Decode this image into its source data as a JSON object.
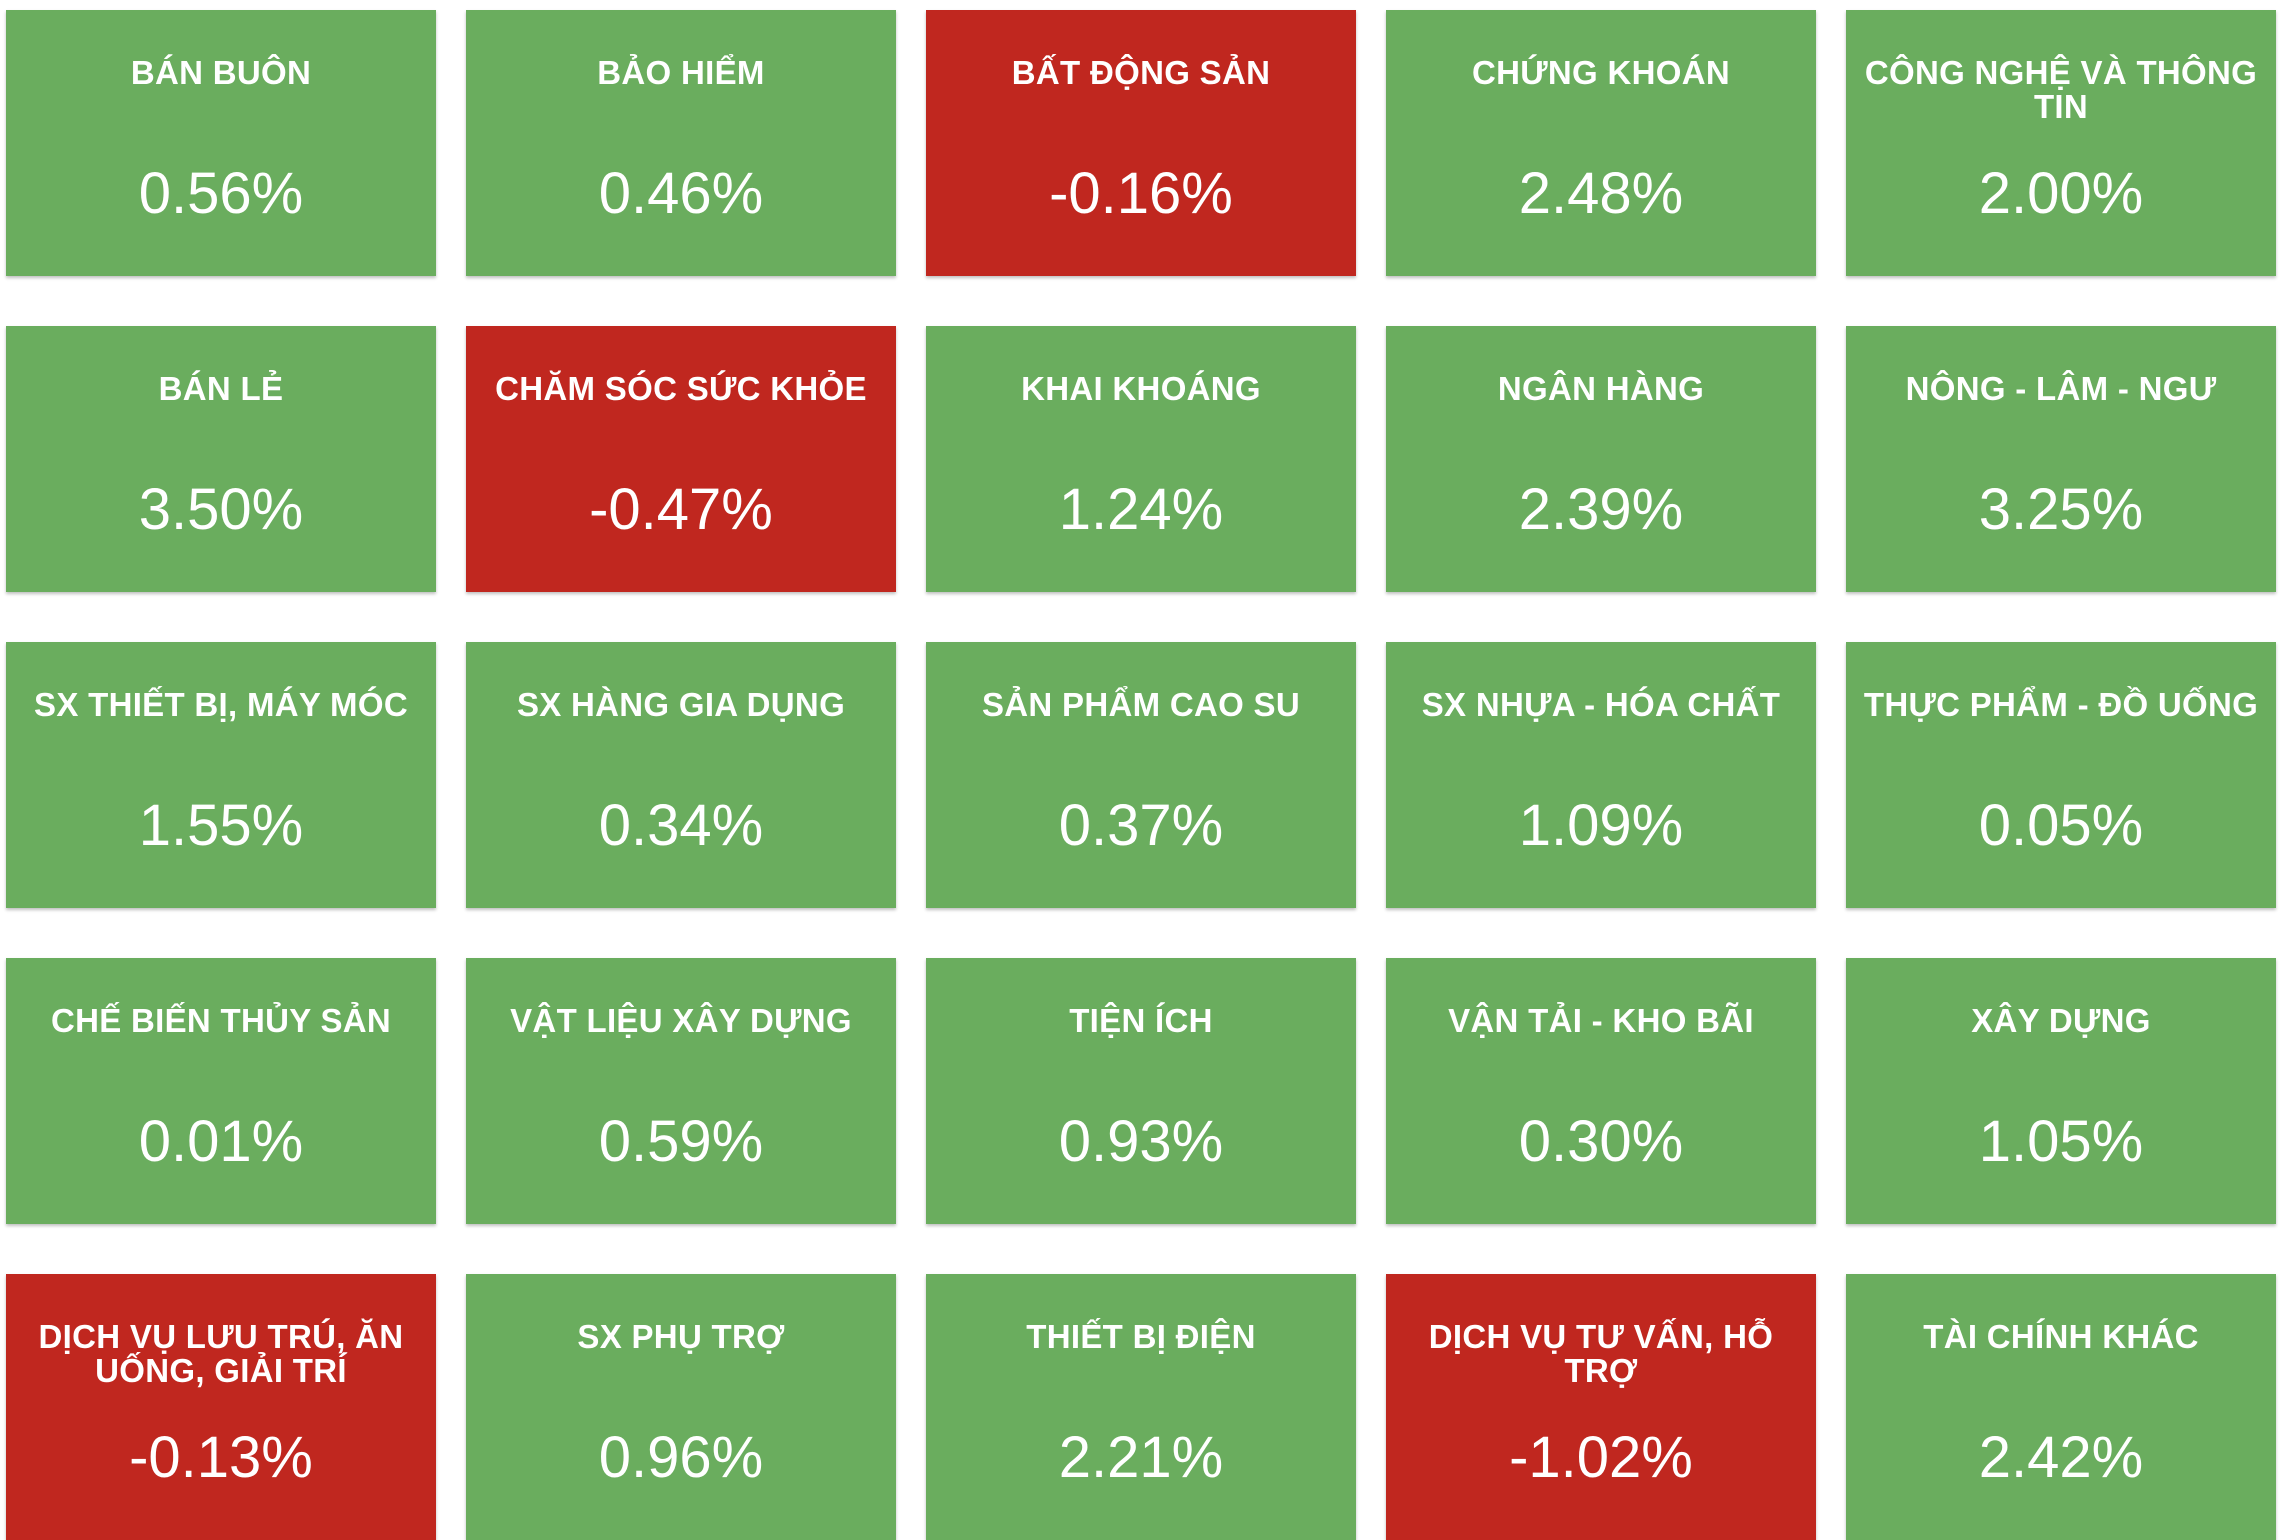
{
  "colors": {
    "up": "#6aad5e",
    "down": "#c0271f",
    "text": "#ffffff"
  },
  "sectors": [
    {
      "name": "BÁN BUÔN",
      "change": "0.56%",
      "trend": "up"
    },
    {
      "name": "BẢO HIỂM",
      "change": "0.46%",
      "trend": "up"
    },
    {
      "name": "BẤT ĐỘNG SẢN",
      "change": "-0.16%",
      "trend": "down"
    },
    {
      "name": "CHỨNG KHOÁN",
      "change": "2.48%",
      "trend": "up"
    },
    {
      "name": "CÔNG NGHỆ VÀ THÔNG TIN",
      "change": "2.00%",
      "trend": "up"
    },
    {
      "name": "BÁN LẺ",
      "change": "3.50%",
      "trend": "up"
    },
    {
      "name": "CHĂM SÓC SỨC KHỎE",
      "change": "-0.47%",
      "trend": "down"
    },
    {
      "name": "KHAI KHOÁNG",
      "change": "1.24%",
      "trend": "up"
    },
    {
      "name": "NGÂN HÀNG",
      "change": "2.39%",
      "trend": "up"
    },
    {
      "name": "NÔNG - LÂM - NGƯ",
      "change": "3.25%",
      "trend": "up"
    },
    {
      "name": "SX THIẾT BỊ, MÁY MÓC",
      "change": "1.55%",
      "trend": "up"
    },
    {
      "name": "SX HÀNG GIA DỤNG",
      "change": "0.34%",
      "trend": "up"
    },
    {
      "name": "SẢN PHẨM CAO SU",
      "change": "0.37%",
      "trend": "up"
    },
    {
      "name": "SX NHỰA - HÓA CHẤT",
      "change": "1.09%",
      "trend": "up"
    },
    {
      "name": "THỰC PHẨM - ĐỒ UỐNG",
      "change": "0.05%",
      "trend": "up"
    },
    {
      "name": "CHẾ BIẾN THỦY SẢN",
      "change": "0.01%",
      "trend": "up"
    },
    {
      "name": "VẬT LIỆU XÂY DỰNG",
      "change": "0.59%",
      "trend": "up"
    },
    {
      "name": "TIỆN ÍCH",
      "change": "0.93%",
      "trend": "up"
    },
    {
      "name": "VẬN TẢI - KHO BÃI",
      "change": "0.30%",
      "trend": "up"
    },
    {
      "name": "XÂY DỰNG",
      "change": "1.05%",
      "trend": "up"
    },
    {
      "name": "DỊCH VỤ LƯU TRÚ, ĂN UỐNG, GIẢI TRÍ",
      "change": "-0.13%",
      "trend": "down"
    },
    {
      "name": "SX PHỤ TRỢ",
      "change": "0.96%",
      "trend": "up"
    },
    {
      "name": "THIẾT BỊ ĐIỆN",
      "change": "2.21%",
      "trend": "up"
    },
    {
      "name": "DỊCH VỤ TƯ VẤN, HỖ TRỢ",
      "change": "-1.02%",
      "trend": "down"
    },
    {
      "name": "TÀI CHÍNH KHÁC",
      "change": "2.42%",
      "trend": "up"
    }
  ]
}
